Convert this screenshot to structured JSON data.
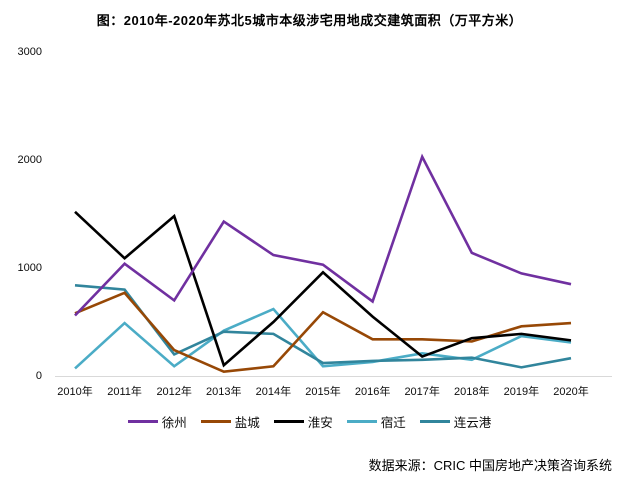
{
  "page": {
    "title": "图：2010年-2020年苏北5城市本级涉宅用地成交建筑面积（万平方米）",
    "source": "数据来源：CRIC 中国房地产决策咨询系统"
  },
  "chart_data": {
    "type": "line",
    "title": "图：2010年-2020年苏北5城市本级涉宅用地成交建筑面积（万平方米）",
    "xlabel": "",
    "ylabel": "",
    "unit": "万平方米",
    "categories": [
      "2010年",
      "2011年",
      "2012年",
      "2013年",
      "2014年",
      "2015年",
      "2016年",
      "2017年",
      "2018年",
      "2019年",
      "2020年"
    ],
    "y_ticks": [
      3000,
      2000,
      1000,
      0
    ],
    "ylim": [
      0,
      3000
    ],
    "grid": "bottom axis line only",
    "legend_position": "bottom",
    "axis_line_color": "#d9d9d9",
    "series": [
      {
        "name": "徐州",
        "color": "#7030A0",
        "values": [
          560,
          1040,
          700,
          1430,
          1120,
          1030,
          690,
          2030,
          1140,
          950,
          850
        ]
      },
      {
        "name": "盐城",
        "color": "#974806",
        "values": [
          580,
          770,
          240,
          40,
          90,
          590,
          340,
          340,
          320,
          460,
          490
        ]
      },
      {
        "name": "淮安",
        "color": "#000000",
        "values": [
          1520,
          1090,
          1480,
          100,
          500,
          960,
          550,
          180,
          350,
          390,
          330
        ]
      },
      {
        "name": "宿迁",
        "color": "#4BACC6",
        "values": [
          70,
          490,
          90,
          420,
          620,
          90,
          130,
          210,
          150,
          370,
          310
        ]
      },
      {
        "name": "连云港",
        "color": "#31859C",
        "values": [
          840,
          800,
          200,
          410,
          390,
          120,
          140,
          150,
          170,
          80,
          165
        ]
      }
    ],
    "source": "数据来源：CRIC 中国房地产决策咨询系统"
  }
}
